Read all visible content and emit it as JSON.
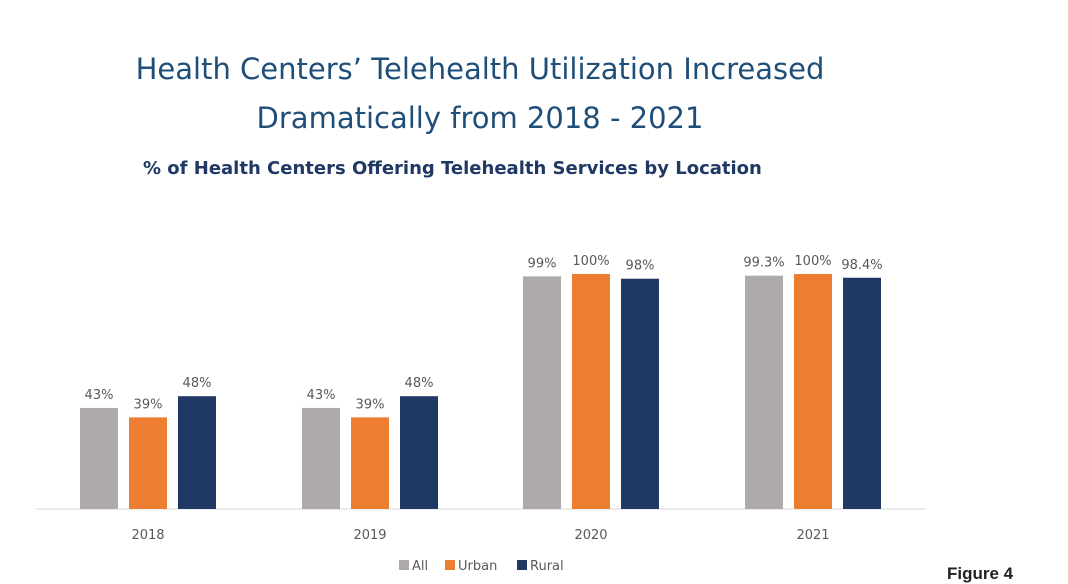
{
  "chart_data": {
    "type": "bar",
    "title": "Health Centers’ Telehealth Utilization Increased",
    "title_line2": "Dramatically from 2018 - 2021",
    "subtitle": "% of Health Centers Offering Telehealth Services by Location",
    "categories": [
      "2018",
      "2019",
      "2020",
      "2021"
    ],
    "series": [
      {
        "name": "All",
        "color": "#aeaaaa",
        "values": [
          43,
          43,
          99,
          99.3
        ],
        "labels": [
          "43%",
          "43%",
          "99%",
          "99.3%"
        ]
      },
      {
        "name": "Urban",
        "color": "#ed7d31",
        "values": [
          39,
          39,
          100,
          100
        ],
        "labels": [
          "39%",
          "39%",
          "100%",
          "100%"
        ]
      },
      {
        "name": "Rural",
        "color": "#203864",
        "values": [
          48,
          48,
          98,
          98.4
        ],
        "labels": [
          "48%",
          "48%",
          "98%",
          "98.4%"
        ]
      }
    ],
    "ylim": [
      0,
      100
    ],
    "grid": false,
    "legend_position": "bottom"
  },
  "figure_label": "Figure 4"
}
